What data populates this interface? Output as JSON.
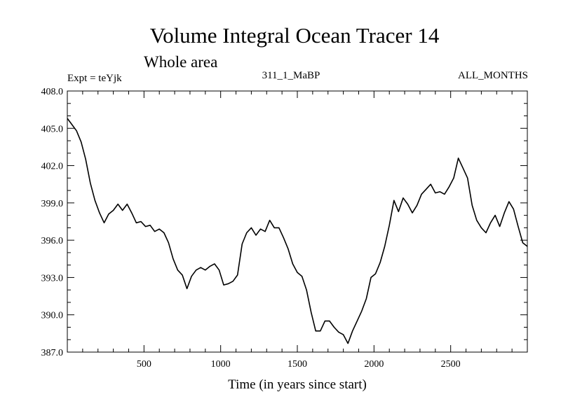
{
  "chart_data": {
    "type": "line",
    "title": "Volume Integral Ocean Tracer 14",
    "subtitle": "Whole area",
    "annotations": {
      "left": "Expt = teYjk",
      "center": "311_1_MaBP",
      "right": "ALL_MONTHS"
    },
    "xlabel": "Time (in years since start)",
    "ylabel": "",
    "xlim": [
      0,
      3000
    ],
    "ylim": [
      387.0,
      408.0
    ],
    "xticks": [
      500,
      1000,
      1500,
      2000,
      2500
    ],
    "xtick_labels": [
      "500",
      "1000",
      "1500",
      "2000",
      "2500"
    ],
    "yticks": [
      387.0,
      390.0,
      393.0,
      396.0,
      399.0,
      402.0,
      405.0,
      408.0
    ],
    "ytick_labels": [
      "387.0",
      "390.0",
      "393.0",
      "396.0",
      "399.0",
      "402.0",
      "405.0",
      "408.0"
    ],
    "grid": false,
    "series": [
      {
        "color": "#000000",
        "x": [
          0,
          30,
          60,
          90,
          120,
          150,
          180,
          210,
          240,
          270,
          300,
          330,
          360,
          390,
          420,
          450,
          480,
          510,
          540,
          570,
          600,
          630,
          660,
          690,
          720,
          750,
          780,
          810,
          840,
          870,
          900,
          930,
          960,
          990,
          1020,
          1050,
          1080,
          1110,
          1140,
          1170,
          1200,
          1230,
          1260,
          1290,
          1320,
          1350,
          1380,
          1410,
          1440,
          1470,
          1500,
          1530,
          1560,
          1590,
          1620,
          1650,
          1680,
          1710,
          1740,
          1770,
          1800,
          1830,
          1860,
          1890,
          1920,
          1950,
          1980,
          2010,
          2040,
          2070,
          2100,
          2130,
          2160,
          2190,
          2220,
          2250,
          2280,
          2310,
          2340,
          2370,
          2400,
          2430,
          2460,
          2490,
          2520,
          2550,
          2580,
          2610,
          2640,
          2670,
          2700,
          2730,
          2760,
          2790,
          2820,
          2850,
          2880,
          2910,
          2940,
          2970,
          3000
        ],
        "values": [
          405.8,
          405.3,
          404.8,
          403.9,
          402.5,
          400.6,
          399.2,
          398.2,
          397.4,
          398.1,
          398.4,
          398.9,
          398.4,
          398.9,
          398.2,
          397.4,
          397.5,
          397.1,
          397.2,
          396.7,
          396.9,
          396.6,
          395.8,
          394.5,
          393.6,
          393.2,
          392.1,
          393.1,
          393.6,
          393.8,
          393.6,
          393.9,
          394.1,
          393.6,
          392.4,
          392.5,
          392.7,
          393.2,
          395.7,
          396.6,
          397.0,
          396.4,
          396.9,
          396.7,
          397.6,
          397.0,
          397.0,
          396.2,
          395.3,
          394.1,
          393.4,
          393.1,
          392.0,
          390.2,
          388.7,
          388.7,
          389.5,
          389.5,
          389.0,
          388.6,
          388.4,
          387.7,
          388.7,
          389.5,
          390.3,
          391.3,
          393.0,
          393.3,
          394.2,
          395.5,
          397.2,
          399.2,
          398.3,
          399.4,
          398.9,
          398.2,
          398.8,
          399.7,
          400.1,
          400.5,
          399.8,
          399.9,
          399.7,
          400.3,
          401.0,
          402.6,
          401.8,
          401.0,
          398.8,
          397.6,
          397.0,
          396.6,
          397.4,
          398.0,
          397.1,
          398.2,
          399.1,
          398.5,
          397.1,
          395.8,
          395.5
        ]
      }
    ]
  }
}
